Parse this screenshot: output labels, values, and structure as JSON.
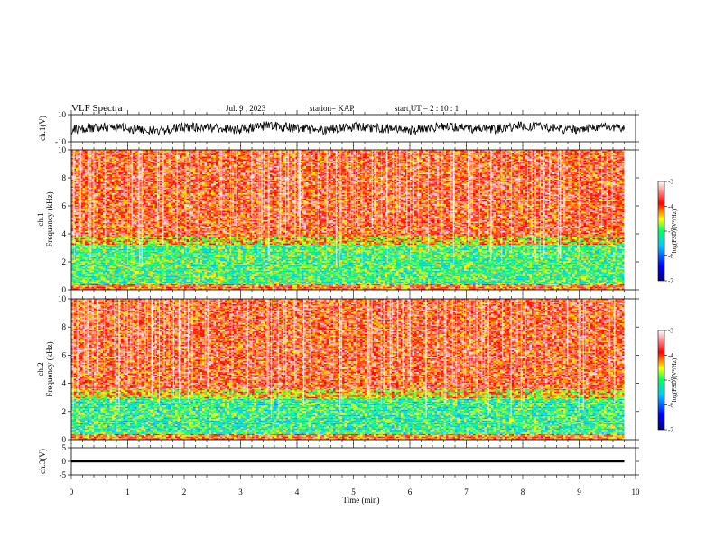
{
  "header": {
    "title": "VLF Spectra",
    "date": "Jul. 9 , 2023",
    "station": "station= KAP",
    "start": "start UT =  2 : 10 : 1"
  },
  "colors": {
    "spectrum_palette": [
      "#00007a",
      "#0000ff",
      "#00c8ff",
      "#00ff64",
      "#ffff00",
      "#ff0000",
      "#ffffff"
    ],
    "waveform": "#000000",
    "background": "#ffffff"
  },
  "chart_data": [
    {
      "type": "line",
      "id": "ch1-waveform",
      "ylabel": "ch.1(V)",
      "ylim": [
        -10,
        10
      ],
      "yticks": [
        "10",
        "-10"
      ],
      "xlim": [
        0,
        10
      ],
      "x": [
        0.0,
        0.5,
        1.0,
        1.5,
        2.0,
        2.5,
        3.0,
        3.5,
        4.0,
        4.5,
        5.0,
        5.5,
        6.0,
        6.5,
        7.0,
        7.5,
        8.0,
        8.5,
        9.0,
        9.5,
        9.8
      ],
      "values": [
        -1,
        1,
        0,
        -2,
        1,
        0,
        -1,
        2,
        0,
        -1,
        1,
        0,
        -2,
        1,
        0,
        -1,
        2,
        0,
        -1,
        1,
        0
      ],
      "note_range": "noisy waveform fluctuating roughly between -5 and +5 V"
    },
    {
      "type": "heatmap",
      "id": "ch1-spectrum",
      "ylabel": "ch.1\nFrequency (kHz)",
      "ylabel_line1": "ch.1",
      "ylabel_line2": "Frequency (kHz)",
      "ylim": [
        0,
        10
      ],
      "yticks": [
        "0",
        "2",
        "4",
        "6",
        "8",
        "10"
      ],
      "xlim": [
        0,
        10
      ],
      "data_end_min": 9.8,
      "bands": [
        {
          "from_khz": 0,
          "to_khz": 0.4,
          "level": -4.0
        },
        {
          "from_khz": 0.4,
          "to_khz": 3.2,
          "level": -5.0
        },
        {
          "from_khz": 3.2,
          "to_khz": 3.8,
          "level": -4.4
        },
        {
          "from_khz": 3.8,
          "to_khz": 10,
          "level": -3.8
        }
      ],
      "colorbar": {
        "label": "log(PSD)(V²/Hz)",
        "min": -7,
        "max": -3,
        "ticks": [
          "-3",
          "-4",
          "-5",
          "-6",
          "-7"
        ]
      }
    },
    {
      "type": "heatmap",
      "id": "ch2-spectrum",
      "ylabel": "ch.2\nFrequency (kHz)",
      "ylabel_line1": "ch.2",
      "ylabel_line2": "Frequency (kHz)",
      "ylim": [
        0,
        10
      ],
      "yticks": [
        "0",
        "2",
        "4",
        "6",
        "8",
        "10"
      ],
      "xlim": [
        0,
        10
      ],
      "data_end_min": 9.8,
      "bands": [
        {
          "from_khz": 0,
          "to_khz": 0.4,
          "level": -4.0
        },
        {
          "from_khz": 0.4,
          "to_khz": 2.9,
          "level": -5.1
        },
        {
          "from_khz": 2.9,
          "to_khz": 3.6,
          "level": -4.4
        },
        {
          "from_khz": 3.6,
          "to_khz": 10,
          "level": -3.8
        }
      ],
      "colorbar": {
        "label": "log(PSD)(V²/Hz)",
        "min": -7,
        "max": -3,
        "ticks": [
          "-3",
          "-4",
          "-5",
          "-6",
          "-7"
        ]
      }
    },
    {
      "type": "line",
      "id": "ch3-waveform",
      "ylabel": "ch.3(V)",
      "ylim": [
        -5,
        5
      ],
      "yticks": [
        "5",
        "0",
        "-5"
      ],
      "xlim": [
        0,
        10
      ],
      "x": [
        0.0,
        9.8
      ],
      "band_min": [
        -0.4,
        -0.4
      ],
      "band_max": [
        0.4,
        0.4
      ]
    }
  ],
  "xaxis": {
    "label": "Time (min)",
    "ticks": [
      "0",
      "1",
      "2",
      "3",
      "4",
      "5",
      "6",
      "7",
      "8",
      "9",
      "10"
    ]
  }
}
